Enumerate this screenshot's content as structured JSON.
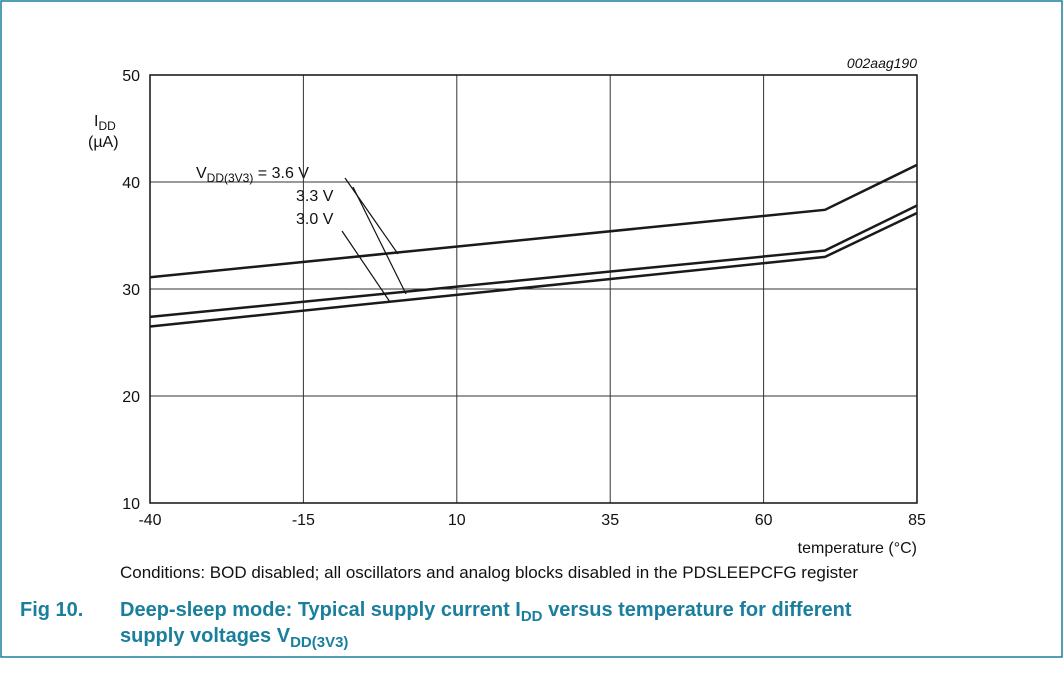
{
  "chart_data": {
    "type": "line",
    "code": "002aag190",
    "ylabel": [
      "I",
      "DD",
      "(µA)"
    ],
    "xlabel": "temperature (°C)",
    "x": [
      -40,
      70,
      85
    ],
    "series": [
      {
        "name": "3.6 V",
        "color": "#1a1a1a",
        "values": [
          31.1,
          37.4,
          41.6
        ]
      },
      {
        "name": "3.3 V",
        "color": "#1a1a1a",
        "values": [
          27.4,
          33.6,
          37.8
        ]
      },
      {
        "name": "3.0 V",
        "color": "#1a1a1a",
        "values": [
          26.5,
          33.0,
          37.1
        ]
      }
    ],
    "legend_prefix": [
      "V",
      "DD(3V3)",
      " = "
    ],
    "xlim": [
      -40,
      85
    ],
    "xticks": [
      -40,
      -15,
      10,
      35,
      60,
      85
    ],
    "ylim": [
      10,
      50
    ],
    "yticks": [
      10,
      20,
      30,
      40,
      50
    ],
    "grid": true,
    "conditions": "Conditions: BOD disabled; all oscillators and analog blocks disabled in the PDSLEEPCFG register",
    "caption": {
      "label": "Fig 10.",
      "line1": [
        "Deep-sleep mode: Typical supply current I",
        "DD",
        " versus temperature for different"
      ],
      "line2": [
        "supply voltages V",
        "DD(3V3)"
      ]
    }
  }
}
